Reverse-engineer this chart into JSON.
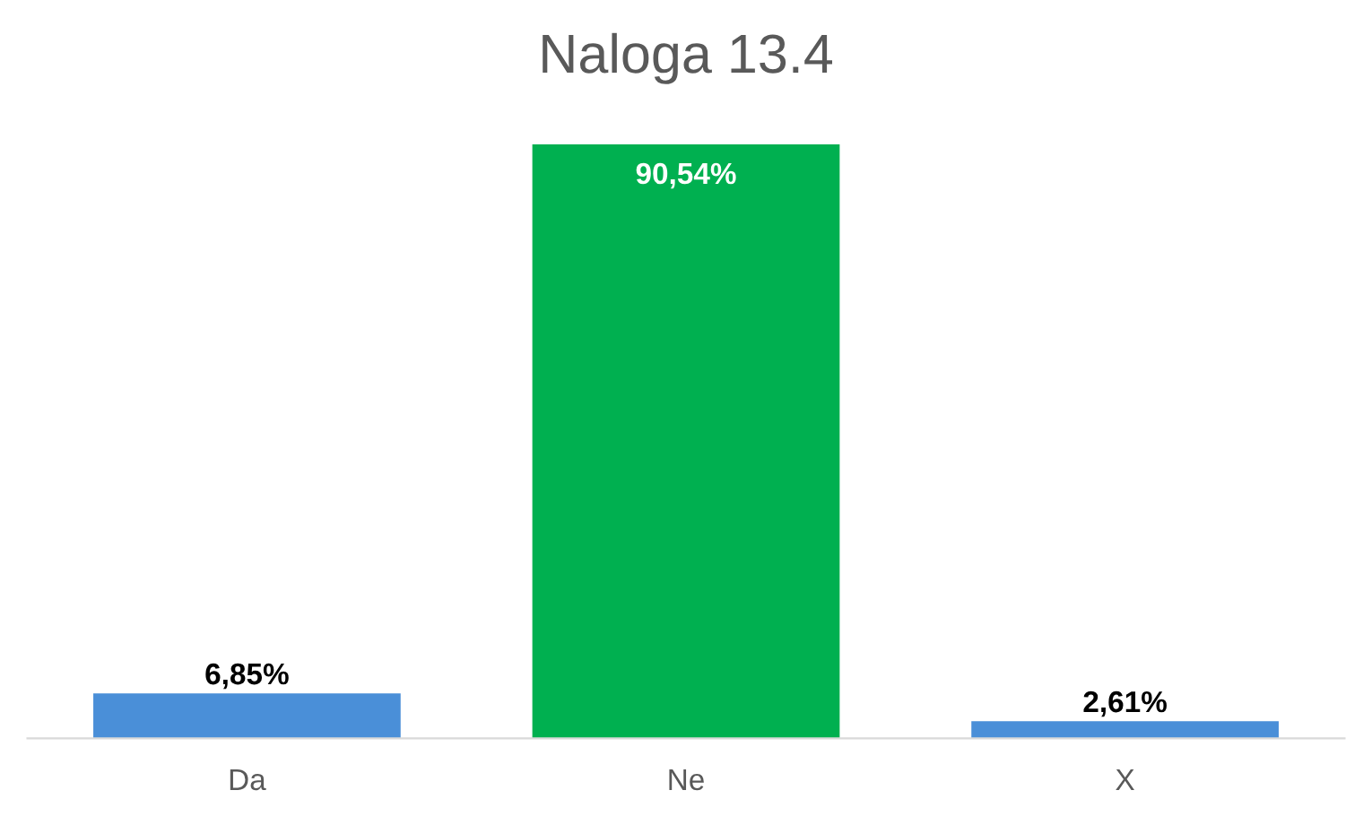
{
  "chart_data": {
    "type": "bar",
    "title": "Naloga 13.4",
    "categories": [
      "Da",
      "Ne",
      "X"
    ],
    "values": [
      6.85,
      90.54,
      2.61
    ],
    "value_labels": [
      "6,85%",
      "90,54%",
      "2,61%"
    ],
    "colors": [
      "#4a8fd8",
      "#00b050",
      "#4a8fd8"
    ],
    "grid": false,
    "legend": false
  }
}
